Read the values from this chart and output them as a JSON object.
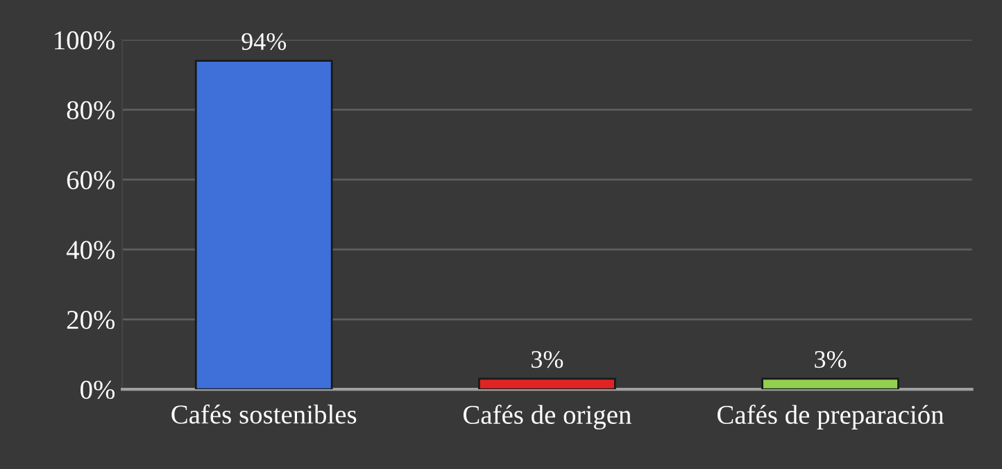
{
  "chart_data": {
    "type": "bar",
    "categories": [
      "Cafés sostenibles",
      "Cafés de origen",
      "Cafés de preparación"
    ],
    "values": [
      94,
      3,
      3
    ],
    "colors": [
      "#3f6fd8",
      "#e02424",
      "#92d050"
    ],
    "value_labels": [
      "94%",
      "3%",
      "3%"
    ],
    "ylim": [
      0,
      100
    ],
    "yticks": [
      {
        "value": 0,
        "label": "0%"
      },
      {
        "value": 20,
        "label": "20%"
      },
      {
        "value": 40,
        "label": "40%"
      },
      {
        "value": 60,
        "label": "60%"
      },
      {
        "value": 80,
        "label": "80%"
      },
      {
        "value": 100,
        "label": "100%"
      }
    ],
    "grid": "y"
  }
}
